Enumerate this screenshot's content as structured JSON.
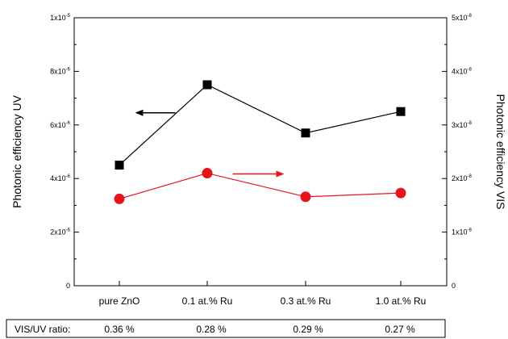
{
  "chart_data": {
    "type": "line",
    "categories": [
      "pure ZnO",
      "0.1 at.% Ru",
      "0.3 at.% Ru",
      "1.0 at.% Ru"
    ],
    "ylabel_left": "Photonic efficiency UV",
    "ylabel_right": "Photonic efficiency VIS",
    "ylim_left": [
      0,
      1e-05
    ],
    "ylim_right": [
      0,
      5e-08
    ],
    "yticks_left": [
      {
        "value": 0,
        "label": "0"
      },
      {
        "value": 2e-06,
        "label": "2x10",
        "exp": "-6"
      },
      {
        "value": 4e-06,
        "label": "4x10",
        "exp": "-6"
      },
      {
        "value": 6e-06,
        "label": "6x10",
        "exp": "-6"
      },
      {
        "value": 8e-06,
        "label": "8x10",
        "exp": "-6"
      },
      {
        "value": 1e-05,
        "label": "1x10",
        "exp": "-5"
      }
    ],
    "yticks_right": [
      {
        "value": 0,
        "label": "0"
      },
      {
        "value": 1e-08,
        "label": "1x10",
        "exp": "-8"
      },
      {
        "value": 2e-08,
        "label": "2x10",
        "exp": "-8"
      },
      {
        "value": 3e-08,
        "label": "3x10",
        "exp": "-8"
      },
      {
        "value": 4e-08,
        "label": "4x10",
        "exp": "-8"
      },
      {
        "value": 5e-08,
        "label": "5x10",
        "exp": "-8"
      }
    ],
    "series": [
      {
        "axis": "left",
        "color": "#000000",
        "marker": "square",
        "values": [
          4.5e-06,
          7.5e-06,
          5.7e-06,
          6.5e-06
        ]
      },
      {
        "axis": "right",
        "color": "#e8141c",
        "marker": "circle",
        "values": [
          1.62e-08,
          2.1e-08,
          1.66e-08,
          1.73e-08
        ]
      }
    ],
    "arrows": [
      {
        "series": 0,
        "direction": "left",
        "color": "#000000"
      },
      {
        "series": 1,
        "direction": "right",
        "color": "#e8141c"
      }
    ],
    "ratio_label": "VIS/UV ratio:",
    "ratios": [
      "0.36 %",
      "0.28 %",
      "0.29 %",
      "0.27 %"
    ]
  }
}
